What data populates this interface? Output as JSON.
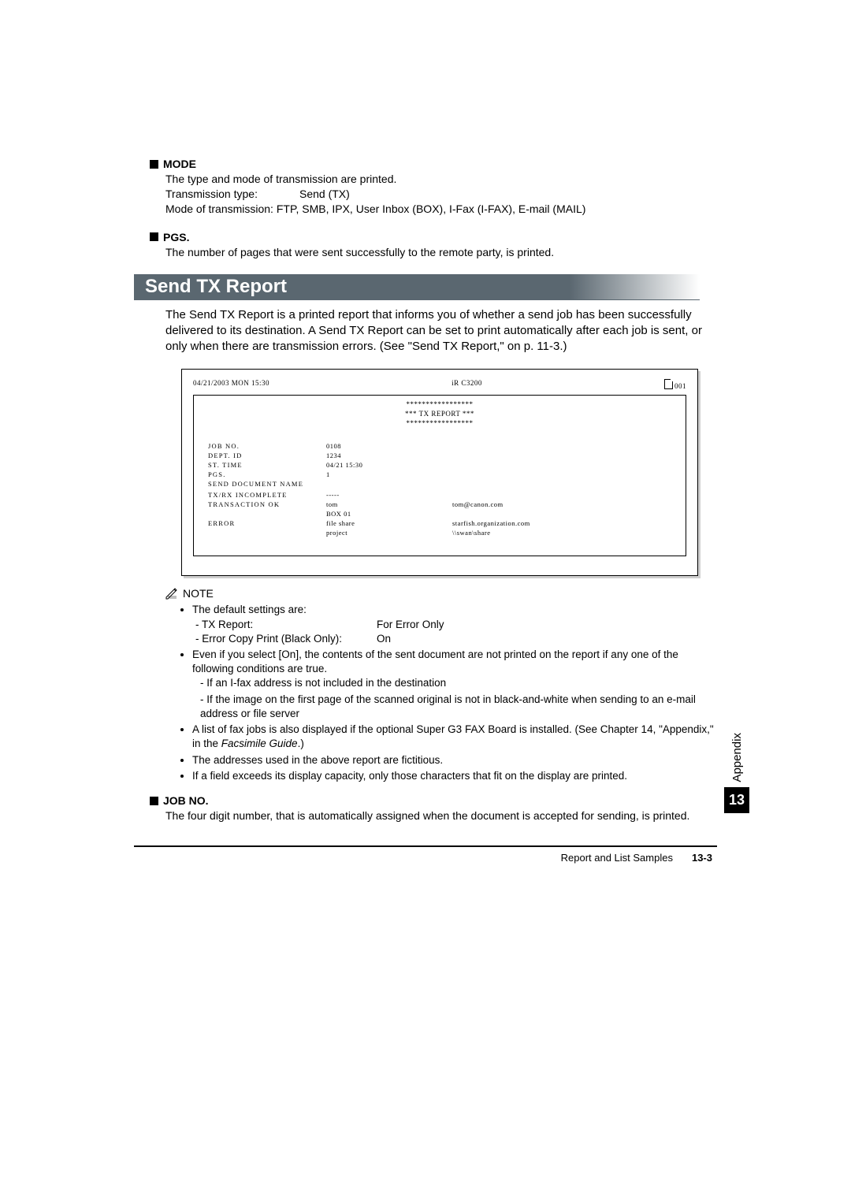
{
  "sections": {
    "mode": {
      "title": "MODE",
      "line1": "The type and mode of transmission are printed.",
      "tx_type_label": "Transmission type:",
      "tx_type_value": "Send (TX)",
      "mode_line": "Mode of transmission: FTP, SMB, IPX, User Inbox (BOX), I-Fax (I-FAX), E-mail (MAIL)"
    },
    "pgs": {
      "title": "PGS.",
      "body": "The number of pages that were sent successfully to the remote party, is printed."
    },
    "jobno": {
      "title": "JOB NO.",
      "body": "The four digit number, that is automatically assigned when the document is accepted for sending, is printed."
    }
  },
  "banner": "Send TX Report",
  "intro": "The Send TX Report is a printed report that informs you of whether a send job has been successfully delivered to its destination. A Send TX Report can be set to print automatically after each job is sent, or only when there are transmission errors. (See \"Send TX Report,\" on p. 11-3.)",
  "report": {
    "top_left": "04/21/2003 MON 15:30",
    "top_center": "iR C3200",
    "top_right": "001",
    "title_line1": "*****************",
    "title_line2": "*** TX REPORT ***",
    "title_line3": "*****************",
    "rows": [
      {
        "label": "JOB NO.",
        "v1": "0108",
        "v2": ""
      },
      {
        "label": "DEPT. ID",
        "v1": "1234",
        "v2": ""
      },
      {
        "label": "ST. TIME",
        "v1": "04/21 15:30",
        "v2": ""
      },
      {
        "label": "PGS.",
        "v1": "1",
        "v2": ""
      },
      {
        "label": "SEND DOCUMENT NAME",
        "v1": "",
        "v2": ""
      },
      {
        "label": "",
        "v1": "",
        "v2": ""
      },
      {
        "label": "TX/RX INCOMPLETE",
        "v1": "-----",
        "v2": ""
      },
      {
        "label": "TRANSACTION OK",
        "v1": "tom",
        "v2": "tom@canon.com"
      },
      {
        "label": "",
        "v1": "BOX 01",
        "v2": ""
      },
      {
        "label": "ERROR",
        "v1": "file share",
        "v2": "starfish.organization.com"
      },
      {
        "label": "",
        "v1": "project",
        "v2": "\\\\swan\\share"
      }
    ]
  },
  "note_label": "NOTE",
  "note": {
    "b1": "The default settings are:",
    "s1k": "TX Report:",
    "s1v": "For Error Only",
    "s2k": "Error Copy Print (Black Only):",
    "s2v": "On",
    "b2": "Even if you select [On], the contents of the sent document are not printed on the report if any one of the following conditions are true.",
    "b2s1": "If an I-fax address is not included in the destination",
    "b2s2": "If the image on the first page of the scanned original is not in black-and-white when sending to an e-mail address or file server",
    "b3a": "A list of fax jobs is also displayed if the optional Super G3 FAX Board is installed. (See Chapter 14, \"Appendix,\" in the ",
    "b3i": "Facsimile Guide",
    "b3b": ".)",
    "b4": "The addresses used in the above report are fictitious.",
    "b5": "If a field exceeds its display capacity, only those characters that fit on the display are printed."
  },
  "side": {
    "label": "Appendix",
    "num": "13"
  },
  "footer": {
    "title": "Report and List Samples",
    "page": "13-3"
  }
}
